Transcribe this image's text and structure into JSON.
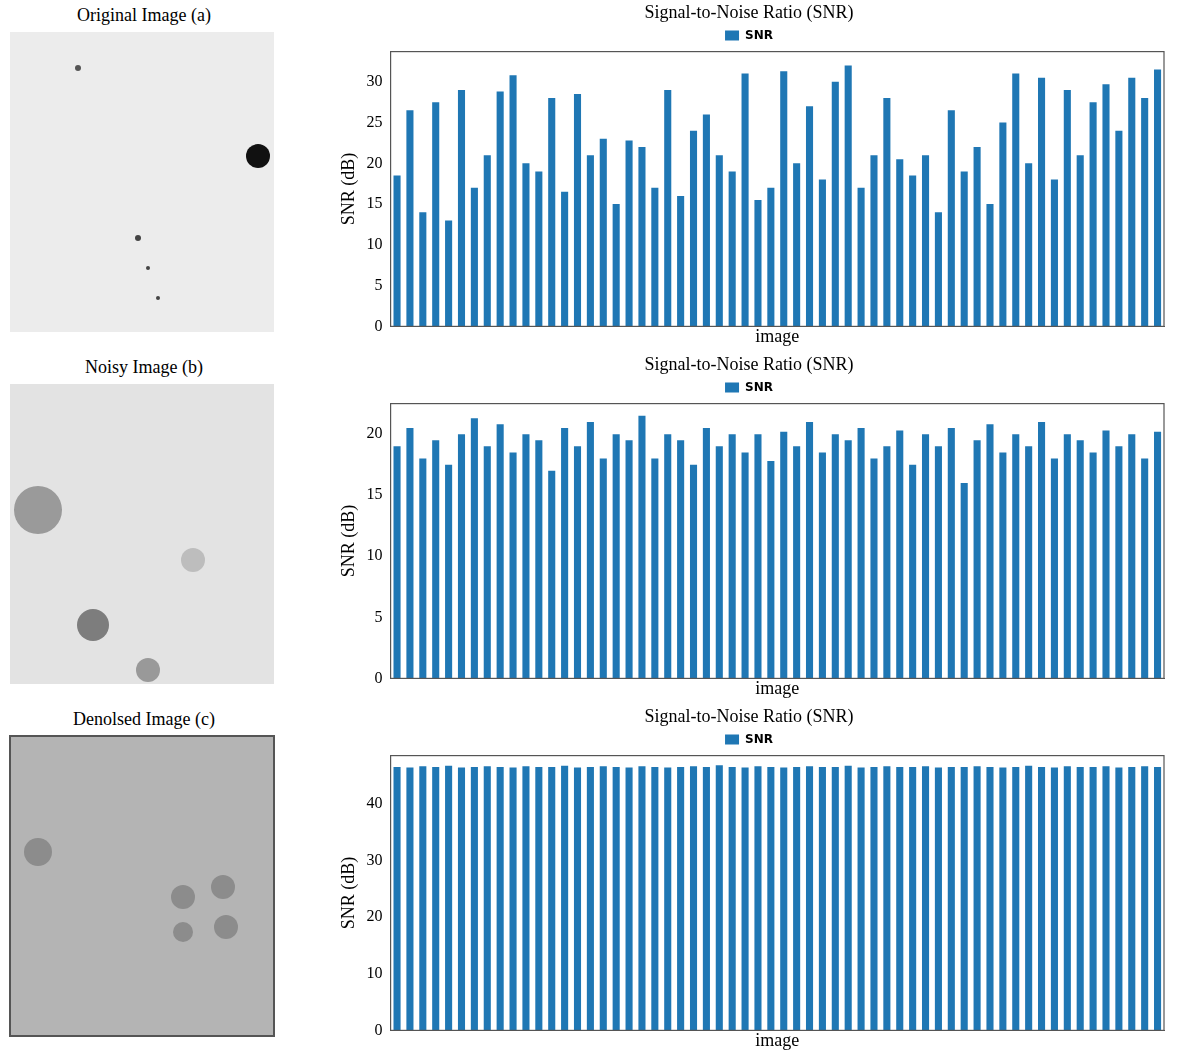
{
  "images": [
    {
      "caption": "Original Image (a)"
    },
    {
      "caption": "Noisy Image (b)"
    },
    {
      "caption": "Denolsed Image (c)"
    }
  ],
  "chart_data": [
    {
      "type": "bar",
      "title": "Signal-to-Noise Ratio (SNR)",
      "x_label": "image",
      "y_label": "SNR (dB)",
      "categories": [
        null,
        null,
        null,
        null,
        null,
        null,
        null,
        null,
        null,
        null,
        null,
        null,
        null,
        null,
        null,
        null,
        null,
        null,
        null,
        null,
        null,
        null,
        null,
        null,
        null,
        null,
        null,
        null,
        null,
        null,
        null,
        null,
        null,
        null,
        null,
        null,
        null,
        null,
        null,
        null,
        null,
        null,
        null,
        null,
        null,
        null,
        null,
        null,
        null,
        null,
        null,
        null,
        null,
        null,
        null,
        null,
        null,
        null,
        null,
        null
      ],
      "series": [
        {
          "name": "SNR",
          "color": "#1f77b4",
          "values": [
            18.5,
            26.5,
            14,
            27.5,
            13,
            29,
            17,
            21,
            28.8,
            30.8,
            20,
            19,
            28,
            16.5,
            28.5,
            21,
            23,
            15,
            22.8,
            22,
            17,
            29,
            16,
            24,
            26,
            21,
            19,
            31,
            15.5,
            17,
            31.3,
            20,
            27,
            18,
            30,
            32,
            17,
            21,
            28,
            20.5,
            18.5,
            21,
            14,
            26.5,
            19,
            22,
            15,
            25,
            31,
            20,
            30.5,
            18,
            29,
            21,
            27.5,
            29.7,
            24,
            30.5,
            28,
            31.5
          ]
        }
      ],
      "ylim": [
        0,
        33.7
      ],
      "yticks": [
        0,
        5,
        10,
        15,
        20,
        25,
        30
      ],
      "grid": false,
      "legend": "top",
      "tick_labels": "y"
    },
    {
      "type": "bar",
      "title": "Signal-to-Noise Ratio (SNR)",
      "x_label": "image",
      "y_label": "SNR (dB)",
      "categories": [
        null,
        null,
        null,
        null,
        null,
        null,
        null,
        null,
        null,
        null,
        null,
        null,
        null,
        null,
        null,
        null,
        null,
        null,
        null,
        null,
        null,
        null,
        null,
        null,
        null,
        null,
        null,
        null,
        null,
        null,
        null,
        null,
        null,
        null,
        null,
        null,
        null,
        null,
        null,
        null,
        null,
        null,
        null,
        null,
        null,
        null,
        null,
        null,
        null,
        null,
        null,
        null,
        null,
        null,
        null,
        null,
        null,
        null,
        null,
        null
      ],
      "series": [
        {
          "name": "SNR",
          "color": "#1f77b4",
          "values": [
            19,
            20.5,
            18,
            19.5,
            17.5,
            20,
            21.3,
            19,
            20.8,
            18.5,
            20,
            19.5,
            17,
            20.5,
            19,
            21,
            18,
            20,
            19.5,
            21.5,
            18,
            20,
            19.5,
            17.5,
            20.5,
            19,
            20,
            18.5,
            20,
            17.8,
            20.2,
            19,
            21,
            18.5,
            20,
            19.5,
            20.5,
            18,
            19,
            20.3,
            17.5,
            20,
            19,
            20.5,
            16,
            19.5,
            20.8,
            18.5,
            20,
            19,
            21,
            18,
            20,
            19.5,
            18.5,
            20.3,
            19,
            20,
            18,
            20.2
          ]
        }
      ],
      "ylim": [
        0,
        22.5
      ],
      "yticks": [
        0,
        5,
        10,
        15,
        20
      ],
      "grid": false,
      "legend": "top",
      "tick_labels": "y"
    },
    {
      "type": "bar",
      "title": "Signal-to-Noise Ratio (SNR)",
      "x_label": "image",
      "y_label": "SNR (dB)",
      "categories": [
        null,
        null,
        null,
        null,
        null,
        null,
        null,
        null,
        null,
        null,
        null,
        null,
        null,
        null,
        null,
        null,
        null,
        null,
        null,
        null,
        null,
        null,
        null,
        null,
        null,
        null,
        null,
        null,
        null,
        null,
        null,
        null,
        null,
        null,
        null,
        null,
        null,
        null,
        null,
        null,
        null,
        null,
        null,
        null,
        null,
        null,
        null,
        null,
        null,
        null,
        null,
        null,
        null,
        null,
        null,
        null,
        null,
        null,
        null,
        null
      ],
      "series": [
        {
          "name": "SNR",
          "color": "#1f77b4",
          "values": [
            46.5,
            46.4,
            46.6,
            46.5,
            46.7,
            46.4,
            46.5,
            46.6,
            46.5,
            46.4,
            46.6,
            46.5,
            46.5,
            46.7,
            46.4,
            46.5,
            46.6,
            46.5,
            46.4,
            46.6,
            46.5,
            46.4,
            46.5,
            46.6,
            46.5,
            46.8,
            46.5,
            46.4,
            46.6,
            46.5,
            46.4,
            46.5,
            46.6,
            46.5,
            46.5,
            46.7,
            46.4,
            46.5,
            46.6,
            46.5,
            46.5,
            46.6,
            46.4,
            46.5,
            46.5,
            46.6,
            46.5,
            46.4,
            46.5,
            46.7,
            46.5,
            46.4,
            46.6,
            46.5,
            46.5,
            46.6,
            46.4,
            46.5,
            46.6,
            46.5
          ]
        }
      ],
      "ylim": [
        0,
        48.5
      ],
      "yticks": [
        0,
        10,
        20,
        30,
        40
      ],
      "grid": false,
      "legend": "top",
      "tick_labels": "y"
    }
  ]
}
